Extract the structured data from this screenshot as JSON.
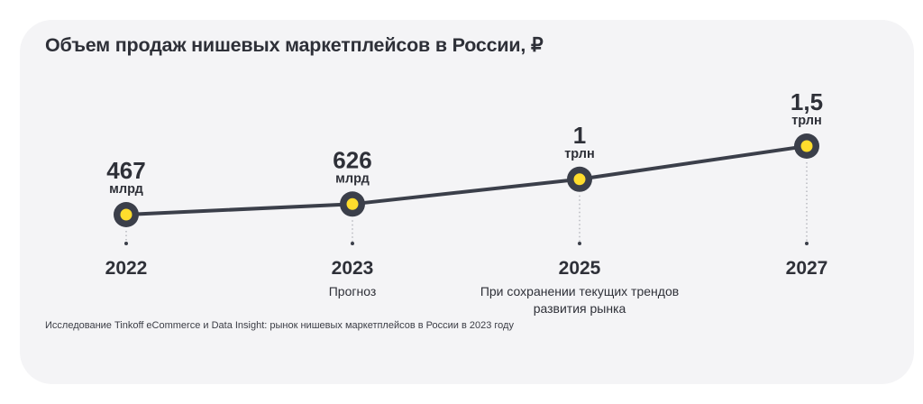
{
  "title": "Объем продаж нишевых маркетплейсов в России, ₽",
  "source": "Исследование Tinkoff eCommerce и Data Insight: рынок нишевых маркетплейсов в России в 2023 году",
  "colors": {
    "line": "#3b3f4a",
    "marker_fill": "#ffdd2d",
    "marker_ring": "#3b3f4a",
    "card": "#f4f4f6"
  },
  "chart_data": {
    "type": "line",
    "categories": [
      "2022",
      "2023",
      "2025",
      "2027"
    ],
    "values": [
      467,
      626,
      1000,
      1500
    ],
    "unit": "млрд ₽",
    "data_labels": [
      {
        "number": "467",
        "unit": "млрд"
      },
      {
        "number": "626",
        "unit": "млрд"
      },
      {
        "number": "1",
        "unit": "трлн"
      },
      {
        "number": "1,5",
        "unit": "трлн"
      }
    ],
    "notes": [
      [],
      [
        "Прогноз"
      ],
      [
        "При сохранении текущих трендов",
        "развития рынка"
      ],
      []
    ],
    "grid": false,
    "legend": "none"
  }
}
